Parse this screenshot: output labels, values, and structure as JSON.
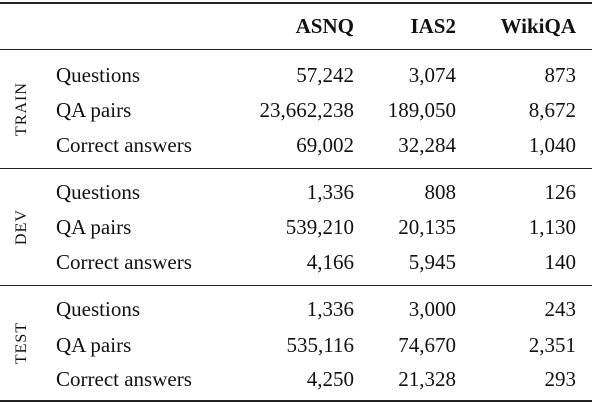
{
  "columns": [
    "ASNQ",
    "IAS2",
    "WikiQA"
  ],
  "sections": [
    {
      "name": "TRAIN",
      "rows": [
        {
          "label": "Questions",
          "values": [
            "57,242",
            "3,074",
            "873"
          ]
        },
        {
          "label": "QA pairs",
          "values": [
            "23,662,238",
            "189,050",
            "8,672"
          ]
        },
        {
          "label": "Correct answers",
          "values": [
            "69,002",
            "32,284",
            "1,040"
          ]
        }
      ]
    },
    {
      "name": "DEV",
      "rows": [
        {
          "label": "Questions",
          "values": [
            "1,336",
            "808",
            "126"
          ]
        },
        {
          "label": "QA pairs",
          "values": [
            "539,210",
            "20,135",
            "1,130"
          ]
        },
        {
          "label": "Correct answers",
          "values": [
            "4,166",
            "5,945",
            "140"
          ]
        }
      ]
    },
    {
      "name": "TEST",
      "rows": [
        {
          "label": "Questions",
          "values": [
            "1,336",
            "3,000",
            "243"
          ]
        },
        {
          "label": "QA pairs",
          "values": [
            "535,116",
            "74,670",
            "2,351"
          ]
        },
        {
          "label": "Correct answers",
          "values": [
            "4,250",
            "21,328",
            "293"
          ]
        }
      ]
    }
  ]
}
